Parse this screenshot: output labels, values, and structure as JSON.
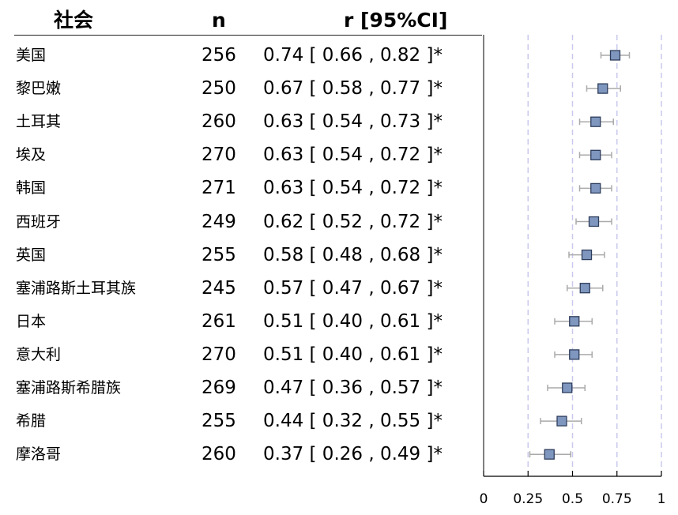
{
  "headers": {
    "society": "社会",
    "n": "n",
    "r": "r [95%CI]"
  },
  "rows": [
    {
      "country": "美国",
      "n": "256",
      "r_text": "0.74 [ 0.66 , 0.82 ]*"
    },
    {
      "country": "黎巴嫩",
      "n": "250",
      "r_text": "0.67 [ 0.58 , 0.77 ]*"
    },
    {
      "country": "土耳其",
      "n": "260",
      "r_text": "0.63 [ 0.54 , 0.73 ]*"
    },
    {
      "country": "埃及",
      "n": "270",
      "r_text": "0.63 [ 0.54 , 0.72 ]*"
    },
    {
      "country": "韩国",
      "n": "271",
      "r_text": "0.63 [ 0.54 , 0.72 ]*"
    },
    {
      "country": "西班牙",
      "n": "249",
      "r_text": "0.62 [ 0.52 , 0.72 ]*"
    },
    {
      "country": "英国",
      "n": "255",
      "r_text": "0.58 [ 0.48 , 0.68 ]*"
    },
    {
      "country": "塞浦路斯土耳其族",
      "n": "245",
      "r_text": "0.57 [ 0.47 , 0.67 ]*"
    },
    {
      "country": "日本",
      "n": "261",
      "r_text": "0.51 [ 0.40 , 0.61 ]*"
    },
    {
      "country": "意大利",
      "n": "270",
      "r_text": "0.51 [ 0.40 , 0.61 ]*"
    },
    {
      "country": "塞浦路斯希腊族",
      "n": "269",
      "r_text": "0.47 [ 0.36 , 0.57 ]*"
    },
    {
      "country": "希腊",
      "n": "255",
      "r_text": "0.44 [ 0.32 , 0.55 ]*"
    },
    {
      "country": "摩洛哥",
      "n": "260",
      "r_text": "0.37 [ 0.26 , 0.49 ]*"
    }
  ],
  "chart_data": {
    "type": "scatter",
    "subtype": "forest",
    "categories": [
      "美国",
      "黎巴嫩",
      "土耳其",
      "埃及",
      "韩国",
      "西班牙",
      "英国",
      "塞浦路斯土耳其族",
      "日本",
      "意大利",
      "塞浦路斯希腊族",
      "希腊",
      "摩洛哥"
    ],
    "estimates": [
      0.74,
      0.67,
      0.63,
      0.63,
      0.63,
      0.62,
      0.58,
      0.57,
      0.51,
      0.51,
      0.47,
      0.44,
      0.37
    ],
    "ci_low": [
      0.66,
      0.58,
      0.54,
      0.54,
      0.54,
      0.52,
      0.48,
      0.47,
      0.4,
      0.4,
      0.36,
      0.32,
      0.26
    ],
    "ci_high": [
      0.82,
      0.77,
      0.73,
      0.72,
      0.72,
      0.72,
      0.68,
      0.67,
      0.61,
      0.61,
      0.57,
      0.55,
      0.49
    ],
    "xlim": [
      0,
      1
    ],
    "xticks": [
      0,
      0.25,
      0.5,
      0.75,
      1
    ],
    "xtick_labels": [
      "0",
      "0.25",
      "0.5",
      "0.75",
      "1"
    ],
    "reference_lines": [
      0.25,
      0.5,
      0.75,
      1
    ],
    "colors": {
      "marker_fill": "#7f97bf",
      "marker_stroke": "#2e3d5c",
      "ci_line": "#aaaaaa",
      "ref_line": "#c9c9ee",
      "axis": "#000000"
    }
  }
}
